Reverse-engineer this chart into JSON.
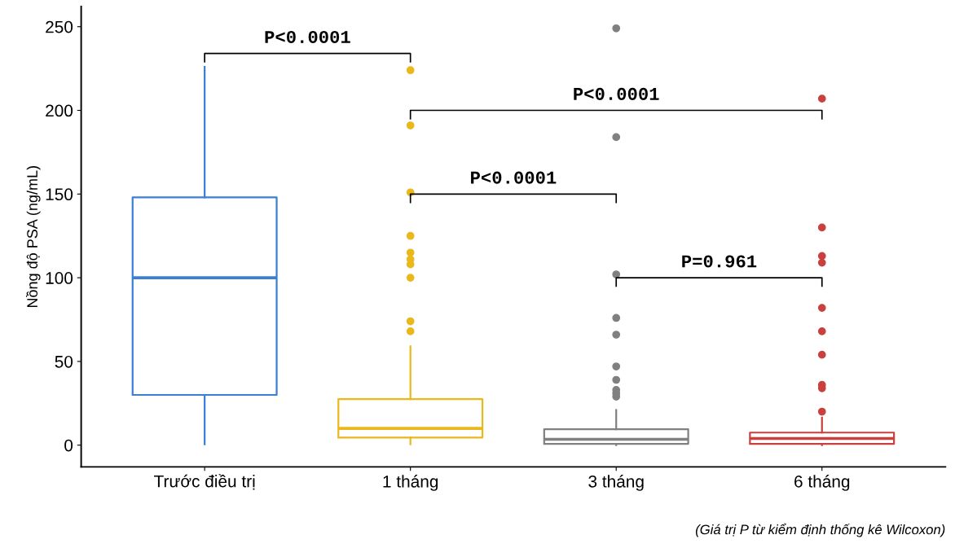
{
  "chart_data": {
    "type": "box",
    "ylabel": "Nồng độ PSA (ng/mL)",
    "categories": [
      "Trước điều trị",
      "1 tháng",
      "3 tháng",
      "6 tháng"
    ],
    "colors": [
      "#3a7fd5",
      "#ebb81c",
      "#808080",
      "#c8413f"
    ],
    "boxes": [
      {
        "low": 0.5,
        "q1": 30,
        "median": 100,
        "q3": 148,
        "high": 226
      },
      {
        "low": 0.5,
        "q1": 4.5,
        "median": 10,
        "q3": 27.5,
        "high": 59,
        "outliers": [
          224,
          191,
          151,
          125,
          115,
          111,
          108,
          100,
          74,
          68
        ]
      },
      {
        "low": 0,
        "q1": 0.8,
        "median": 3.5,
        "q3": 9.5,
        "high": 21,
        "outliers": [
          249,
          184,
          102,
          76,
          66,
          47,
          39,
          33,
          31,
          29
        ]
      },
      {
        "low": 0,
        "q1": 0.8,
        "median": 4,
        "q3": 7.5,
        "high": 16.5,
        "outliers": [
          207,
          130,
          113,
          109,
          82,
          68,
          54,
          36,
          34,
          20
        ]
      }
    ],
    "ylim": [
      -13,
      262
    ],
    "yticks": [
      0,
      50,
      100,
      150,
      200,
      250
    ],
    "grid": false,
    "annotations": [
      "P<0.0001",
      "P<0.0001",
      "P<0.0001",
      "P=0.961",
      "(Giá trị P từ kiểm định thống kê Wilcoxon)"
    ]
  }
}
